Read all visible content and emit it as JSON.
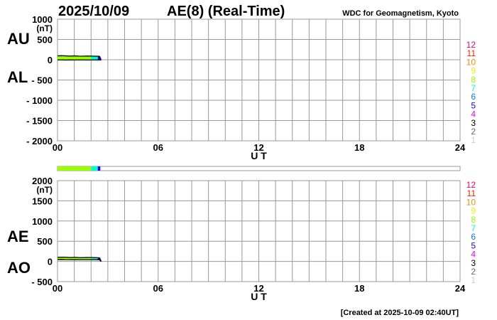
{
  "header": {
    "date": "2025/10/09",
    "title": "AE(8)  (Real-Time)",
    "source": "WDC for Geomagnetism, Kyoto",
    "created": "[Created at 2025-10-09 02:40UT]"
  },
  "chart_data": [
    {
      "type": "line",
      "unit": "(nT)",
      "series_labels": [
        "AU",
        "AL"
      ],
      "xlabel": "U T",
      "xlim": [
        0,
        24
      ],
      "xticks": [
        "00",
        "06",
        "12",
        "18",
        "24"
      ],
      "ylim": [
        -2000,
        1000
      ],
      "yticks": [
        "1000",
        "500",
        "0",
        "- 500",
        "- 1000",
        "- 1500",
        "- 2000"
      ],
      "ytick_values": [
        1000,
        500,
        0,
        -500,
        -1000,
        -1500,
        -2000
      ],
      "grid": true,
      "x": [
        0,
        0.25,
        0.5,
        0.75,
        1,
        1.25,
        1.5,
        1.75,
        2,
        2.25,
        2.5,
        2.6
      ],
      "series": [
        {
          "name": "AU",
          "values": [
            95,
            100,
            95,
            90,
            95,
            90,
            88,
            92,
            90,
            88,
            85,
            0
          ]
        },
        {
          "name": "AL",
          "values": [
            -5,
            -5,
            -8,
            -5,
            -6,
            -5,
            -5,
            -7,
            -6,
            -5,
            -5,
            -10
          ]
        }
      ]
    },
    {
      "type": "line",
      "unit": "(nT)",
      "series_labels": [
        "AE",
        "AO"
      ],
      "xlabel": "U T",
      "xlim": [
        0,
        24
      ],
      "xticks": [
        "00",
        "06",
        "12",
        "18",
        "24"
      ],
      "ylim": [
        -500,
        2000
      ],
      "yticks": [
        "2000",
        "1500",
        "1000",
        "500",
        "0",
        "- 500"
      ],
      "ytick_values": [
        2000,
        1500,
        1000,
        500,
        0,
        -500
      ],
      "grid": true,
      "x": [
        0,
        0.25,
        0.5,
        0.75,
        1,
        1.25,
        1.5,
        1.75,
        2,
        2.25,
        2.5,
        2.6
      ],
      "series": [
        {
          "name": "AE",
          "values": [
            100,
            105,
            103,
            95,
            101,
            95,
            93,
            99,
            96,
            93,
            90,
            10
          ]
        },
        {
          "name": "AO",
          "values": [
            45,
            47,
            43,
            42,
            44,
            42,
            41,
            42,
            42,
            41,
            40,
            -5
          ]
        }
      ]
    }
  ],
  "station_count_bar": [
    {
      "from": 0,
      "to": 2.0,
      "level": 8
    },
    {
      "from": 2.0,
      "to": 2.4,
      "level": 7
    },
    {
      "from": 2.4,
      "to": 2.55,
      "level": 5
    }
  ],
  "legend": {
    "levels": [
      "12",
      "11",
      "10",
      "9",
      "8",
      "7",
      "6",
      "5",
      "4",
      "3",
      "2",
      "1"
    ],
    "colors": [
      "#ff0066",
      "#ff1a00",
      "#ff8800",
      "#ffee00",
      "#99ff00",
      "#00ffcc",
      "#0077ff",
      "#2200ff",
      "#dd00ff",
      "#000000",
      "#666666",
      "#cccccc"
    ]
  }
}
